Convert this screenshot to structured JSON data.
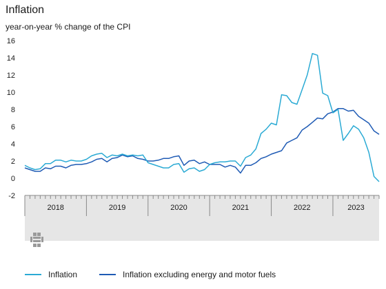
{
  "chart_data": {
    "type": "line",
    "title": "Inflation",
    "ylabel": "year-on-year % change of the CPI",
    "ylim": [
      -2,
      16
    ],
    "yticks": [
      16,
      14,
      12,
      10,
      8,
      6,
      4,
      2,
      0,
      -2
    ],
    "x_start": "2018-01",
    "xlim_months": [
      0,
      69
    ],
    "x_year_labels": [
      "2018",
      "2019",
      "2020",
      "2021",
      "2022",
      "2023"
    ],
    "colors": {
      "inflation": "#2aaad4",
      "core": "#1e5ab4",
      "band": "#e6e6e6",
      "axis": "#888888"
    },
    "series": [
      {
        "name": "Inflation",
        "key": "inflation",
        "values": [
          1.5,
          1.2,
          1.0,
          1.1,
          1.7,
          1.7,
          2.1,
          2.1,
          1.9,
          2.1,
          2.0,
          2.0,
          2.2,
          2.6,
          2.8,
          2.9,
          2.4,
          2.7,
          2.6,
          2.8,
          2.6,
          2.7,
          2.6,
          2.7,
          1.8,
          1.6,
          1.4,
          1.2,
          1.2,
          1.6,
          1.7,
          0.7,
          1.1,
          1.2,
          0.8,
          1.0,
          1.6,
          1.8,
          1.9,
          1.9,
          2.0,
          2.0,
          1.4,
          2.4,
          2.7,
          3.4,
          5.2,
          5.7,
          6.4,
          6.2,
          9.7,
          9.6,
          8.8,
          8.6,
          10.3,
          12.0,
          14.5,
          14.3,
          9.9,
          9.6,
          7.6,
          8.0,
          4.4,
          5.2,
          6.1,
          5.7,
          4.7,
          3.0,
          0.2,
          -0.4
        ]
      },
      {
        "name": "Inflation excluding energy and motor fuels",
        "key": "core",
        "values": [
          1.2,
          1.0,
          0.8,
          0.8,
          1.2,
          1.1,
          1.4,
          1.4,
          1.2,
          1.5,
          1.6,
          1.6,
          1.7,
          1.9,
          2.2,
          2.3,
          1.9,
          2.3,
          2.4,
          2.7,
          2.5,
          2.6,
          2.3,
          2.2,
          2.0,
          2.0,
          2.1,
          2.3,
          2.3,
          2.5,
          2.6,
          1.5,
          2.0,
          2.1,
          1.7,
          1.9,
          1.6,
          1.6,
          1.6,
          1.3,
          1.5,
          1.3,
          0.6,
          1.5,
          1.5,
          1.8,
          2.3,
          2.5,
          2.8,
          3.0,
          3.2,
          4.1,
          4.4,
          4.7,
          5.6,
          6.0,
          6.5,
          7.0,
          6.9,
          7.5,
          7.7,
          8.1,
          8.1,
          7.8,
          7.9,
          7.2,
          6.8,
          6.4,
          5.5,
          5.1
        ]
      }
    ],
    "grid": false,
    "legend_position": "bottom"
  }
}
